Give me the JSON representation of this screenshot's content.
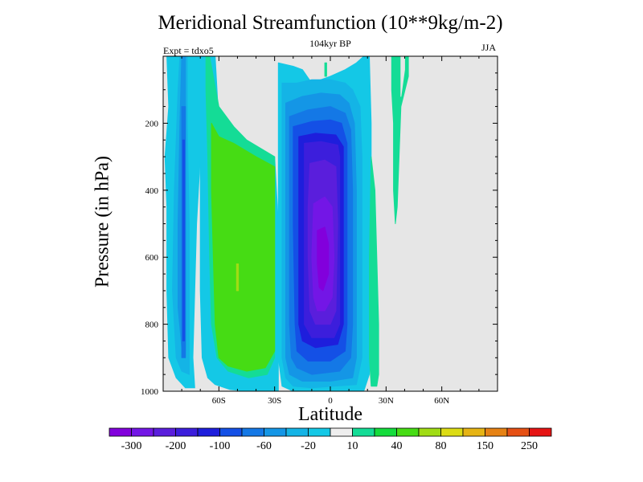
{
  "chart_data": {
    "type": "contour",
    "title": "Meridional Streamfunction (10**9kg/m-2)",
    "subtitle": "104kyr BP",
    "left_label": "Expt = tdxo5",
    "right_label": "JJA",
    "xlabel": "Latitude",
    "ylabel": "Pressure (in hPa)",
    "xlim": [
      -90,
      90
    ],
    "ylim": [
      1000,
      0
    ],
    "x_ticks": [
      {
        "value": -60,
        "label": "60S"
      },
      {
        "value": -30,
        "label": "30S"
      },
      {
        "value": 0,
        "label": "0"
      },
      {
        "value": 30,
        "label": "30N"
      },
      {
        "value": 60,
        "label": "60N"
      }
    ],
    "y_ticks": [
      {
        "value": 200,
        "label": "200"
      },
      {
        "value": 400,
        "label": "400"
      },
      {
        "value": 600,
        "label": "600"
      },
      {
        "value": 800,
        "label": "800"
      },
      {
        "value": 1000,
        "label": "1000"
      }
    ],
    "background_color": "#e6e6e6",
    "colorbar": {
      "levels": [
        -300,
        -250,
        -200,
        -150,
        -100,
        -80,
        -60,
        -40,
        -20,
        -10,
        10,
        20,
        40,
        60,
        80,
        100,
        150,
        200,
        250,
        300
      ],
      "labels": [
        "-300",
        "-200",
        "-100",
        "-60",
        "-20",
        "10",
        "40",
        "80",
        "150",
        "250"
      ],
      "colors": [
        "#8200dc",
        "#7316e6",
        "#5a1edc",
        "#3c1edc",
        "#1e1edc",
        "#1450e6",
        "#1478e6",
        "#1496e6",
        "#14b4e6",
        "#14c8e6",
        "#eeeeee",
        "#14dc96",
        "#14dc3c",
        "#46dc14",
        "#a0dc14",
        "#dcdc14",
        "#e6b414",
        "#e68214",
        "#e65014",
        "#e61414"
      ]
    },
    "contour_regions": [
      {
        "name": "sh-polar-cell",
        "color": "#14c8e6",
        "polygon": [
          [
            -88,
            0
          ],
          [
            -84,
            0
          ],
          [
            -80,
            0
          ],
          [
            -77,
            0
          ],
          [
            -73,
            0
          ],
          [
            -70,
            0
          ],
          [
            -70,
            300
          ],
          [
            -72,
            500
          ],
          [
            -73,
            700
          ],
          [
            -74,
            900
          ],
          [
            -73,
            990
          ],
          [
            -78,
            990
          ],
          [
            -83,
            960
          ],
          [
            -87,
            900
          ],
          [
            -88,
            700
          ],
          [
            -88,
            450
          ],
          [
            -89,
            300
          ],
          [
            -87,
            150
          ]
        ]
      },
      {
        "name": "sh-polar-cell-2",
        "color": "#14b4e6",
        "polygon": [
          [
            -81,
            0
          ],
          [
            -77,
            0
          ],
          [
            -77,
            200
          ],
          [
            -76,
            500
          ],
          [
            -76,
            800
          ],
          [
            -76,
            950
          ],
          [
            -80,
            940
          ],
          [
            -83,
            900
          ],
          [
            -85,
            700
          ],
          [
            -84,
            400
          ],
          [
            -82,
            100
          ]
        ]
      },
      {
        "name": "sh-polar-cell-3",
        "color": "#1496e6",
        "polygon": [
          [
            -80,
            0
          ],
          [
            -78,
            0
          ],
          [
            -78,
            300
          ],
          [
            -78,
            700
          ],
          [
            -78,
            880
          ],
          [
            -80,
            870
          ],
          [
            -82,
            750
          ],
          [
            -82,
            500
          ],
          [
            -81,
            200
          ]
        ]
      },
      {
        "name": "sh-polar-cell-core",
        "color": "#1478e6",
        "polygon": [
          [
            -80,
            150
          ],
          [
            -78,
            150
          ],
          [
            -78,
            900
          ],
          [
            -80,
            900
          ]
        ]
      },
      {
        "name": "sh-polar-cell-inner",
        "color": "#1450e6",
        "polygon": [
          [
            -79.5,
            250
          ],
          [
            -78.5,
            250
          ],
          [
            -78.5,
            850
          ],
          [
            -79.5,
            850
          ]
        ]
      },
      {
        "name": "ferrel-outer",
        "color": "#14c8e6",
        "polygon": [
          [
            -70,
            0
          ],
          [
            -62,
            0
          ],
          [
            -60,
            200
          ],
          [
            -58,
            280
          ],
          [
            -48,
            300
          ],
          [
            -35,
            300
          ],
          [
            -30,
            300
          ],
          [
            -28,
            500
          ],
          [
            -28,
            800
          ],
          [
            -28,
            1000
          ],
          [
            -34,
            1000
          ],
          [
            -44,
            1000
          ],
          [
            -54,
            995
          ],
          [
            -62,
            980
          ],
          [
            -66,
            960
          ],
          [
            -69,
            900
          ],
          [
            -70,
            700
          ],
          [
            -70,
            300
          ]
        ]
      },
      {
        "name": "ferrel-10",
        "color": "#14dc96",
        "polygon": [
          [
            -67,
            0
          ],
          [
            -65,
            0
          ],
          [
            -60,
            150
          ],
          [
            -52,
            210
          ],
          [
            -45,
            250
          ],
          [
            -30,
            300
          ],
          [
            -30,
            900
          ],
          [
            -34,
            950
          ],
          [
            -44,
            960
          ],
          [
            -55,
            940
          ],
          [
            -61,
            900
          ],
          [
            -64,
            800
          ],
          [
            -65,
            600
          ],
          [
            -66,
            300
          ],
          [
            -67,
            100
          ]
        ]
      },
      {
        "name": "ferrel-20",
        "color": "#46dc14",
        "polygon": [
          [
            -64,
            200
          ],
          [
            -60,
            240
          ],
          [
            -52,
            260
          ],
          [
            -40,
            300
          ],
          [
            -30,
            330
          ],
          [
            -30,
            880
          ],
          [
            -35,
            930
          ],
          [
            -45,
            940
          ],
          [
            -55,
            925
          ],
          [
            -60,
            900
          ],
          [
            -62,
            800
          ],
          [
            -63,
            600
          ],
          [
            -64,
            400
          ]
        ]
      },
      {
        "name": "ferrel-core",
        "color": "#a0dc14",
        "polygon": [
          [
            -50.5,
            620
          ],
          [
            -49.5,
            620
          ],
          [
            -49.5,
            700
          ],
          [
            -50.5,
            700
          ]
        ]
      },
      {
        "name": "hadley-outer",
        "color": "#14c8e6",
        "polygon": [
          [
            -28,
            20
          ],
          [
            -20,
            30
          ],
          [
            -15,
            40
          ],
          [
            -10,
            80
          ],
          [
            0,
            60
          ],
          [
            8,
            40
          ],
          [
            14,
            20
          ],
          [
            18,
            0
          ],
          [
            21,
            0
          ],
          [
            22,
            200
          ],
          [
            22,
            500
          ],
          [
            22,
            800
          ],
          [
            21,
            950
          ],
          [
            18,
            1000
          ],
          [
            -10,
            1000
          ],
          [
            -20,
            1000
          ],
          [
            -26,
            985
          ],
          [
            -28,
            900
          ],
          [
            -28,
            400
          ]
        ]
      },
      {
        "name": "hadley-20",
        "color": "#14b4e6",
        "polygon": [
          [
            -26,
            80
          ],
          [
            -18,
            80
          ],
          [
            -10,
            70
          ],
          [
            0,
            70
          ],
          [
            8,
            80
          ],
          [
            12,
            100
          ],
          [
            16,
            150
          ],
          [
            17,
            300
          ],
          [
            17,
            600
          ],
          [
            17,
            900
          ],
          [
            14,
            980
          ],
          [
            -10,
            990
          ],
          [
            -20,
            985
          ],
          [
            -24,
            960
          ],
          [
            -26,
            900
          ],
          [
            -26,
            500
          ],
          [
            -26,
            200
          ]
        ]
      },
      {
        "name": "hadley-40",
        "color": "#1496e6",
        "polygon": [
          [
            -24,
            140
          ],
          [
            -15,
            120
          ],
          [
            -5,
            110
          ],
          [
            5,
            115
          ],
          [
            10,
            140
          ],
          [
            13,
            200
          ],
          [
            14,
            400
          ],
          [
            14,
            700
          ],
          [
            14,
            900
          ],
          [
            12,
            960
          ],
          [
            0,
            970
          ],
          [
            -15,
            970
          ],
          [
            -22,
            950
          ],
          [
            -24,
            900
          ],
          [
            -24,
            600
          ],
          [
            -24,
            300
          ]
        ]
      },
      {
        "name": "hadley-60",
        "color": "#1478e6",
        "polygon": [
          [
            -22,
            180
          ],
          [
            -12,
            160
          ],
          [
            0,
            150
          ],
          [
            8,
            170
          ],
          [
            11,
            220
          ],
          [
            12,
            400
          ],
          [
            12,
            800
          ],
          [
            11,
            900
          ],
          [
            5,
            940
          ],
          [
            -10,
            950
          ],
          [
            -18,
            930
          ],
          [
            -21,
            900
          ],
          [
            -22,
            800
          ],
          [
            -22,
            400
          ]
        ]
      },
      {
        "name": "hadley-80",
        "color": "#1450e6",
        "polygon": [
          [
            -20,
            210
          ],
          [
            -10,
            195
          ],
          [
            0,
            190
          ],
          [
            6,
            200
          ],
          [
            9,
            260
          ],
          [
            9,
            500
          ],
          [
            9,
            800
          ],
          [
            8,
            880
          ],
          [
            0,
            910
          ],
          [
            -12,
            910
          ],
          [
            -18,
            880
          ],
          [
            -19,
            800
          ],
          [
            -20,
            500
          ]
        ]
      },
      {
        "name": "hadley-100",
        "color": "#1e1edc",
        "polygon": [
          [
            -17,
            240
          ],
          [
            -8,
            230
          ],
          [
            3,
            235
          ],
          [
            7,
            270
          ],
          [
            7,
            500
          ],
          [
            7,
            800
          ],
          [
            4,
            860
          ],
          [
            -8,
            870
          ],
          [
            -15,
            850
          ],
          [
            -17,
            800
          ],
          [
            -17,
            500
          ]
        ]
      },
      {
        "name": "hadley-150",
        "color": "#3c1edc",
        "polygon": [
          [
            -14,
            260
          ],
          [
            -5,
            255
          ],
          [
            4,
            265
          ],
          [
            5,
            300
          ],
          [
            5,
            600
          ],
          [
            5,
            800
          ],
          [
            2,
            840
          ],
          [
            -10,
            840
          ],
          [
            -14,
            800
          ],
          [
            -14,
            500
          ]
        ]
      },
      {
        "name": "hadley-200",
        "color": "#5a1edc",
        "polygon": [
          [
            -11,
            320
          ],
          [
            -3,
            310
          ],
          [
            3,
            330
          ],
          [
            4,
            500
          ],
          [
            3,
            760
          ],
          [
            0,
            800
          ],
          [
            -8,
            800
          ],
          [
            -11,
            760
          ],
          [
            -12,
            600
          ],
          [
            -12,
            450
          ]
        ]
      },
      {
        "name": "hadley-250",
        "color": "#7316e6",
        "polygon": [
          [
            -9,
            440
          ],
          [
            -3,
            420
          ],
          [
            1,
            450
          ],
          [
            2,
            600
          ],
          [
            1,
            720
          ],
          [
            -3,
            760
          ],
          [
            -7,
            760
          ],
          [
            -9,
            720
          ],
          [
            -10,
            600
          ]
        ]
      },
      {
        "name": "hadley-core",
        "color": "#8200dc",
        "polygon": [
          [
            -7,
            520
          ],
          [
            -3,
            510
          ],
          [
            -1,
            560
          ],
          [
            -1,
            650
          ],
          [
            -4,
            700
          ],
          [
            -6,
            690
          ],
          [
            -7,
            620
          ]
        ]
      },
      {
        "name": "eq-shallow-10",
        "color": "#14dc96",
        "polygon": [
          [
            -3,
            20
          ],
          [
            -2,
            20
          ],
          [
            -2,
            60
          ],
          [
            -3,
            60
          ]
        ]
      },
      {
        "name": "nh-cell-10",
        "color": "#14dc96",
        "polygon": [
          [
            22,
            300
          ],
          [
            24,
            400
          ],
          [
            25,
            600
          ],
          [
            26,
            800
          ],
          [
            26,
            950
          ],
          [
            25,
            985
          ],
          [
            22,
            985
          ],
          [
            21,
            900
          ],
          [
            21,
            600
          ]
        ]
      },
      {
        "name": "nh-upper-10",
        "color": "#14dc96",
        "polygon": [
          [
            33,
            0
          ],
          [
            38,
            0
          ],
          [
            42,
            0
          ],
          [
            42,
            60
          ],
          [
            38,
            150
          ],
          [
            37,
            300
          ],
          [
            36,
            450
          ],
          [
            35,
            500
          ],
          [
            34,
            400
          ],
          [
            34,
            200
          ],
          [
            33,
            100
          ]
        ]
      },
      {
        "name": "nh-upper-20",
        "color": "#e6e6e6",
        "polygon": [
          [
            38,
            0
          ],
          [
            40,
            0
          ],
          [
            40,
            40
          ],
          [
            38,
            120
          ],
          [
            38,
            80
          ]
        ]
      }
    ]
  }
}
